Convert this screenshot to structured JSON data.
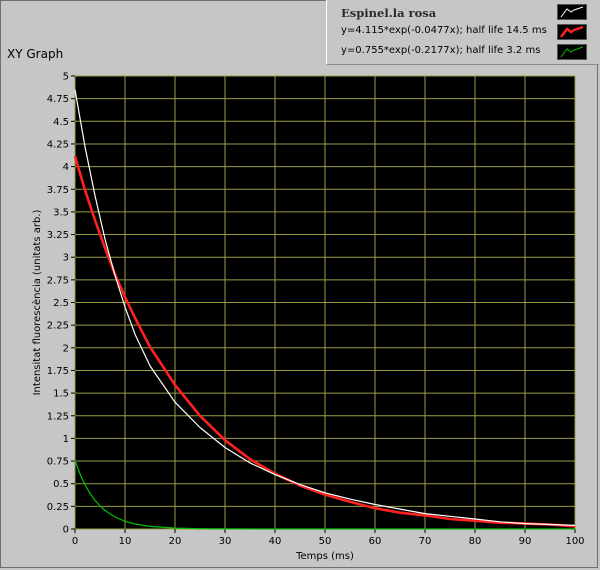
{
  "graph_title": "XY Graph",
  "legend": {
    "title": "Espinel.la rosa",
    "items": [
      {
        "label": "y=4.115*exp(-0.0477x); half life 14.5 ms",
        "color": "#ff2020"
      },
      {
        "label": "y=0.755*exp(-0.2177x); half life 3.2 ms",
        "color": "#00c000"
      }
    ],
    "title_color": "#ffffff"
  },
  "colors": {
    "plot_bg": "#000000",
    "grid": "#9c9c46",
    "data_series": "#ffffff",
    "fit1": "#ff2020",
    "fit2": "#00c000"
  },
  "chart_data": {
    "type": "line",
    "xlabel": "Temps (ms)",
    "ylabel": "Intensitat fluorescència (unitats arb.)",
    "xlim": [
      0,
      100
    ],
    "ylim": [
      0,
      5
    ],
    "xticks": [
      0,
      10,
      20,
      30,
      40,
      50,
      60,
      70,
      80,
      90,
      100
    ],
    "yticks": [
      0,
      0.25,
      0.5,
      0.75,
      1,
      1.25,
      1.5,
      1.75,
      2,
      2.25,
      2.5,
      2.75,
      3,
      3.25,
      3.5,
      3.75,
      4,
      4.25,
      4.5,
      4.75,
      5
    ],
    "grid": true,
    "series": [
      {
        "name": "Espinel.la rosa",
        "color": "#ffffff",
        "x": [
          0,
          2,
          4,
          6,
          8,
          10,
          12,
          15,
          20,
          25,
          30,
          35,
          40,
          45,
          50,
          55,
          60,
          65,
          70,
          75,
          80,
          85,
          90,
          95,
          100
        ],
        "y": [
          4.85,
          4.22,
          3.68,
          3.2,
          2.8,
          2.45,
          2.15,
          1.8,
          1.4,
          1.12,
          0.9,
          0.73,
          0.6,
          0.49,
          0.4,
          0.33,
          0.27,
          0.22,
          0.17,
          0.14,
          0.11,
          0.08,
          0.06,
          0.05,
          0.04
        ]
      },
      {
        "name": "y=4.115*exp(-0.0477x); half life 14.5 ms",
        "color": "#ff2020",
        "x": [
          0,
          2,
          4,
          6,
          8,
          10,
          12,
          15,
          20,
          25,
          30,
          35,
          40,
          45,
          50,
          55,
          60,
          65,
          70,
          75,
          80,
          85,
          90,
          95,
          100
        ],
        "y": [
          4.115,
          3.74,
          3.41,
          3.1,
          2.81,
          2.56,
          2.33,
          2.01,
          1.59,
          1.25,
          0.98,
          0.77,
          0.61,
          0.48,
          0.38,
          0.3,
          0.23,
          0.18,
          0.15,
          0.11,
          0.09,
          0.07,
          0.06,
          0.05,
          0.03
        ]
      },
      {
        "name": "y=0.755*exp(-0.2177x); half life 3.2 ms",
        "color": "#00c000",
        "x": [
          0,
          1,
          2,
          3,
          4,
          5,
          6,
          8,
          10,
          12,
          15,
          20,
          25,
          30,
          40,
          50,
          60,
          70,
          80,
          90,
          100
        ],
        "y": [
          0.755,
          0.607,
          0.488,
          0.393,
          0.316,
          0.254,
          0.204,
          0.132,
          0.085,
          0.055,
          0.029,
          0.01,
          0.003,
          0.001,
          0,
          0,
          0,
          0,
          0,
          0,
          0
        ]
      }
    ]
  }
}
